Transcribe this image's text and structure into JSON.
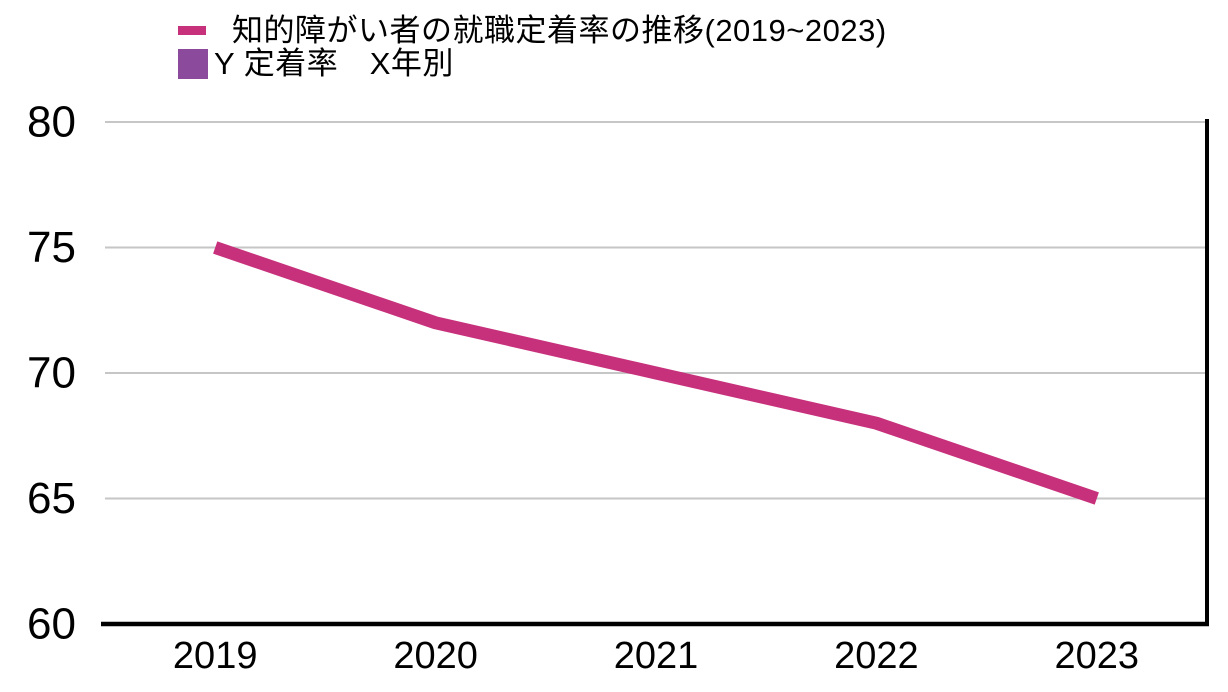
{
  "legend": {
    "series_label": "知的障がい者の就職定着率の推移(2019~2023)",
    "axes_label": "Y 定着率　X年別"
  },
  "chart_data": {
    "type": "line",
    "title": "知的障がい者の就職定着率の推移(2019~2023)",
    "categories": [
      "2019",
      "2020",
      "2021",
      "2022",
      "2023"
    ],
    "series": [
      {
        "name": "知的障がい者の就職定着率の推移(2019~2023)",
        "values": [
          75,
          72,
          70,
          68,
          65
        ]
      }
    ],
    "xlabel": "年別",
    "ylabel": "定着率",
    "ylim": [
      60,
      80
    ],
    "yticks": [
      60,
      65,
      70,
      75,
      80
    ],
    "grid": true,
    "legend_position": "top-left",
    "colors": {
      "line": "#c7317c",
      "legend_square": "#8c4a9d",
      "grid": "#c6c6c6",
      "axis": "#000000",
      "text": "#000000",
      "background": "#ffffff"
    }
  }
}
